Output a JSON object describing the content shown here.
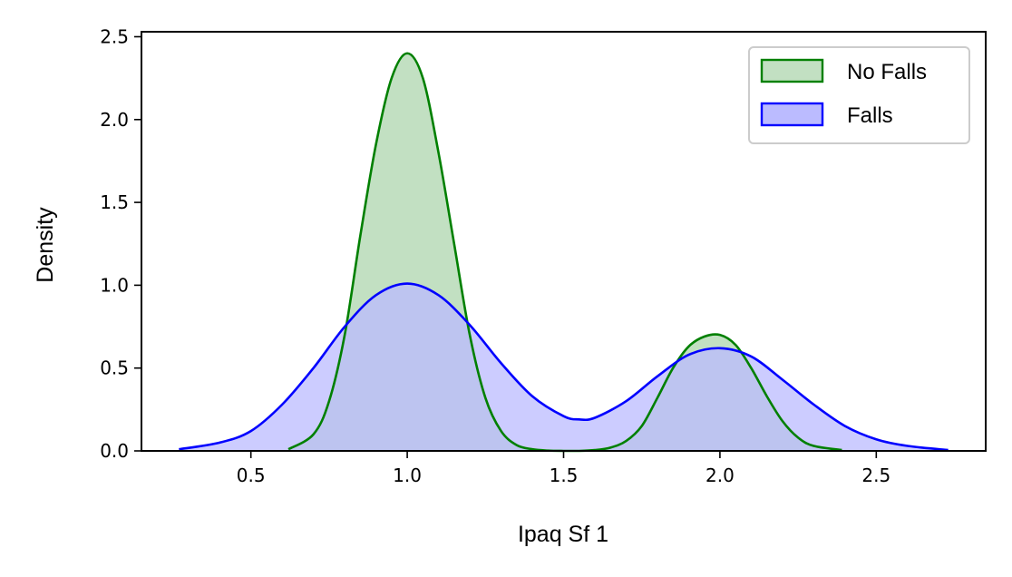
{
  "chart_data": {
    "type": "area",
    "xlabel": "Ipaq Sf 1",
    "ylabel": "Density",
    "xlim": [
      0.15,
      2.85
    ],
    "ylim": [
      0.0,
      2.53
    ],
    "xticks": [
      0.5,
      1.0,
      1.5,
      2.0,
      2.5
    ],
    "xtick_labels": [
      "0.5",
      "1.0",
      "1.5",
      "2.0",
      "2.5"
    ],
    "yticks": [
      0.0,
      0.5,
      1.0,
      1.5,
      2.0,
      2.5
    ],
    "ytick_labels": [
      "0.0",
      "0.5",
      "1.0",
      "1.5",
      "2.0",
      "2.5"
    ],
    "grid": false,
    "legend_position": "top-right",
    "series": [
      {
        "name": "No Falls",
        "color": "#008000",
        "fill": "#c2e0c2",
        "x": [
          0.62,
          0.7,
          0.75,
          0.8,
          0.85,
          0.9,
          0.95,
          1.0,
          1.05,
          1.1,
          1.15,
          1.2,
          1.25,
          1.3,
          1.35,
          1.4,
          1.45,
          1.5,
          1.55,
          1.6,
          1.65,
          1.7,
          1.75,
          1.8,
          1.85,
          1.9,
          1.95,
          2.0,
          2.05,
          2.1,
          2.15,
          2.2,
          2.25,
          2.3,
          2.39
        ],
        "y": [
          0.01,
          0.1,
          0.3,
          0.7,
          1.3,
          1.85,
          2.25,
          2.4,
          2.25,
          1.8,
          1.25,
          0.7,
          0.32,
          0.12,
          0.035,
          0.01,
          0.002,
          0.0,
          0.0,
          0.005,
          0.02,
          0.06,
          0.15,
          0.32,
          0.5,
          0.63,
          0.69,
          0.7,
          0.64,
          0.5,
          0.33,
          0.18,
          0.08,
          0.03,
          0.005
        ]
      },
      {
        "name": "Falls",
        "color": "#0000ff",
        "fill": "#bbbbff",
        "x": [
          0.27,
          0.4,
          0.5,
          0.6,
          0.7,
          0.8,
          0.9,
          1.0,
          1.1,
          1.2,
          1.3,
          1.4,
          1.5,
          1.55,
          1.6,
          1.7,
          1.8,
          1.9,
          2.0,
          2.1,
          2.2,
          2.3,
          2.4,
          2.5,
          2.6,
          2.73
        ],
        "y": [
          0.01,
          0.05,
          0.12,
          0.28,
          0.5,
          0.75,
          0.94,
          1.01,
          0.94,
          0.76,
          0.53,
          0.33,
          0.21,
          0.19,
          0.2,
          0.3,
          0.45,
          0.58,
          0.62,
          0.57,
          0.43,
          0.28,
          0.15,
          0.07,
          0.03,
          0.005
        ]
      }
    ]
  }
}
